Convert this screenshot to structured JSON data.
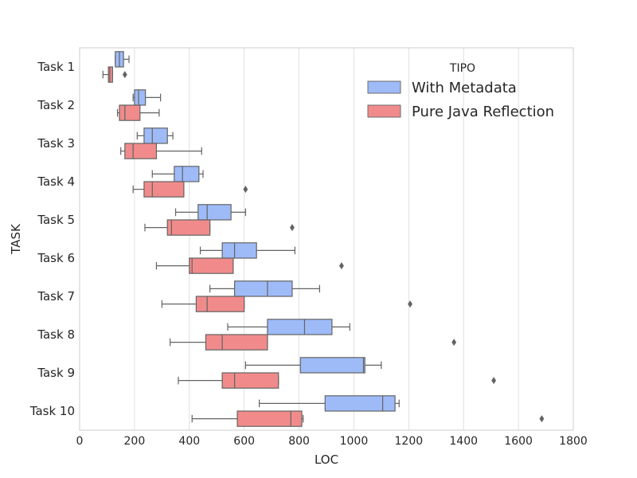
{
  "chart_data": {
    "type": "boxplot",
    "orientation": "horizontal",
    "title": "",
    "xlabel": "LOC",
    "ylabel": "TASK",
    "xlim": [
      0,
      1800
    ],
    "xticks": [
      0,
      200,
      400,
      600,
      800,
      1000,
      1200,
      1400,
      1600,
      1800
    ],
    "grid": true,
    "legend": {
      "title": "TIPO",
      "placement": "top-right"
    },
    "categories": [
      "Task 1",
      "Task 2",
      "Task 3",
      "Task 4",
      "Task 5",
      "Task 6",
      "Task 7",
      "Task 8",
      "Task 9",
      "Task 10"
    ],
    "series": [
      {
        "name": "With Metadata",
        "color": "#9ebbf8",
        "boxes": [
          {
            "whislo": 130,
            "q1": 130,
            "med": 145,
            "q3": 160,
            "whishi": 180,
            "fliers": []
          },
          {
            "whislo": 195,
            "q1": 200,
            "med": 215,
            "q3": 240,
            "whishi": 295,
            "fliers": []
          },
          {
            "whislo": 210,
            "q1": 235,
            "med": 265,
            "q3": 320,
            "whishi": 340,
            "fliers": []
          },
          {
            "whislo": 265,
            "q1": 345,
            "med": 375,
            "q3": 435,
            "whishi": 450,
            "fliers": []
          },
          {
            "whislo": 350,
            "q1": 432,
            "med": 465,
            "q3": 552,
            "whishi": 605,
            "fliers": []
          },
          {
            "whislo": 440,
            "q1": 520,
            "med": 565,
            "q3": 645,
            "whishi": 785,
            "fliers": []
          },
          {
            "whislo": 475,
            "q1": 565,
            "med": 685,
            "q3": 775,
            "whishi": 875,
            "fliers": []
          },
          {
            "whislo": 540,
            "q1": 685,
            "med": 820,
            "q3": 920,
            "whishi": 985,
            "fliers": []
          },
          {
            "whislo": 605,
            "q1": 805,
            "med": 1035,
            "q3": 1040,
            "whishi": 1100,
            "fliers": []
          },
          {
            "whislo": 655,
            "q1": 895,
            "med": 1105,
            "q3": 1150,
            "whishi": 1165,
            "fliers": []
          }
        ]
      },
      {
        "name": "Pure Java Reflection",
        "color": "#f18b8b",
        "boxes": [
          {
            "whislo": 85,
            "q1": 105,
            "med": 110,
            "q3": 120,
            "whishi": 120,
            "fliers": [
              165
            ]
          },
          {
            "whislo": 138,
            "q1": 145,
            "med": 165,
            "q3": 220,
            "whishi": 290,
            "fliers": []
          },
          {
            "whislo": 150,
            "q1": 165,
            "med": 195,
            "q3": 280,
            "whishi": 445,
            "fliers": []
          },
          {
            "whislo": 195,
            "q1": 235,
            "med": 265,
            "q3": 380,
            "whishi": 380,
            "fliers": [
              605
            ]
          },
          {
            "whislo": 238,
            "q1": 320,
            "med": 335,
            "q3": 475,
            "whishi": 475,
            "fliers": [
              775
            ]
          },
          {
            "whislo": 280,
            "q1": 400,
            "med": 410,
            "q3": 560,
            "whishi": 560,
            "fliers": [
              955
            ]
          },
          {
            "whislo": 300,
            "q1": 425,
            "med": 465,
            "q3": 600,
            "whishi": 600,
            "fliers": [
              1205
            ]
          },
          {
            "whislo": 330,
            "q1": 460,
            "med": 520,
            "q3": 685,
            "whishi": 685,
            "fliers": [
              1365
            ]
          },
          {
            "whislo": 360,
            "q1": 520,
            "med": 565,
            "q3": 725,
            "whishi": 725,
            "fliers": [
              1510
            ]
          },
          {
            "whislo": 410,
            "q1": 575,
            "med": 770,
            "q3": 810,
            "whishi": 815,
            "fliers": [
              1685
            ]
          }
        ]
      }
    ]
  }
}
